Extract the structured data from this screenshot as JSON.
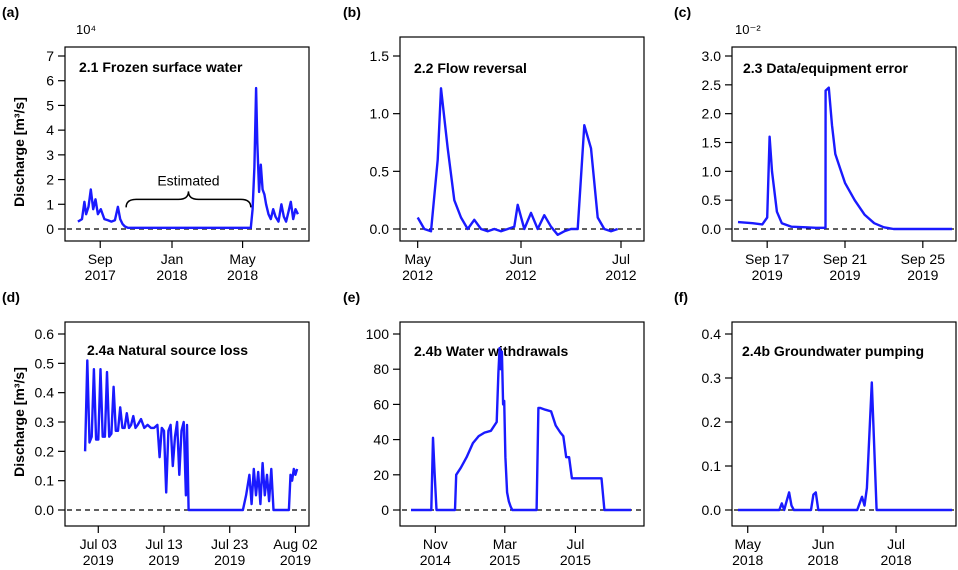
{
  "colors": {
    "series": "#1a1aff",
    "zero_line": "#000000",
    "axis": "#000000"
  },
  "ylabel": "Discharge [m³/s]",
  "chart_data": [
    {
      "type": "line",
      "panel_label": "(a)",
      "title": "2.1 Frozen surface water",
      "multiplier": "10⁴",
      "ylim": [
        0,
        7
      ],
      "yticks": [
        0,
        1,
        2,
        3,
        4,
        5,
        6,
        7
      ],
      "xlim": [
        "2017-07-15",
        "2018-08-10"
      ],
      "xticks": [
        {
          "x": "2017-09-01",
          "label": [
            "Sep",
            "2017"
          ]
        },
        {
          "x": "2018-01-01",
          "label": [
            "Jan",
            "2018"
          ]
        },
        {
          "x": "2018-05-01",
          "label": [
            "May",
            "2018"
          ]
        }
      ],
      "annotation": {
        "text": "Estimated",
        "x_start": "2017-10-15",
        "x_end": "2018-05-15",
        "y": 1.2
      },
      "series": [
        {
          "x": [
            "2017-07-25",
            "2017-08-01",
            "2017-08-05",
            "2017-08-08",
            "2017-08-12",
            "2017-08-16",
            "2017-08-20",
            "2017-08-24",
            "2017-08-28",
            "2017-09-02",
            "2017-09-08",
            "2017-09-14",
            "2017-09-20",
            "2017-09-26",
            "2017-10-01",
            "2017-10-05",
            "2017-10-09",
            "2017-10-13",
            "2017-10-18",
            "2017-11-01",
            "2018-01-01",
            "2018-03-01",
            "2018-05-15",
            "2018-05-18",
            "2018-05-21",
            "2018-05-24",
            "2018-05-26",
            "2018-05-29",
            "2018-06-01",
            "2018-06-04",
            "2018-06-07",
            "2018-06-10",
            "2018-06-14",
            "2018-06-18",
            "2018-06-22",
            "2018-06-26",
            "2018-07-01",
            "2018-07-06",
            "2018-07-10",
            "2018-07-14",
            "2018-07-18",
            "2018-07-22",
            "2018-07-26",
            "2018-07-30",
            "2018-08-03"
          ],
          "y": [
            0.3,
            0.4,
            1.1,
            0.6,
            0.9,
            1.6,
            0.8,
            1.2,
            0.6,
            0.8,
            0.4,
            0.35,
            0.3,
            0.35,
            0.9,
            0.4,
            0.2,
            0.1,
            0.05,
            0.05,
            0.05,
            0.05,
            0.05,
            0.8,
            2.5,
            5.7,
            3.5,
            1.5,
            2.6,
            1.6,
            1.4,
            1.0,
            0.6,
            0.4,
            0.8,
            0.5,
            0.3,
            1.0,
            0.5,
            0.3,
            0.7,
            1.1,
            0.4,
            0.8,
            0.6
          ]
        }
      ]
    },
    {
      "type": "line",
      "panel_label": "(b)",
      "title": "2.2 Flow reversal",
      "multiplier": "",
      "ylim": [
        -0.15,
        1.6
      ],
      "yticks": [
        0.0,
        0.5,
        1.0,
        1.5
      ],
      "ytick_labels": [
        "0.0",
        "0.5",
        "1.0",
        "1.5"
      ],
      "xlim": [
        "2012-04-29",
        "2012-07-04"
      ],
      "xticks": [
        {
          "x": "2012-05-01",
          "label": [
            "May",
            "2012"
          ]
        },
        {
          "x": "2012-06-01",
          "label": [
            "Jun",
            "2012"
          ]
        },
        {
          "x": "2012-07-01",
          "label": [
            "Jul",
            "2012"
          ]
        }
      ],
      "series": [
        {
          "x": [
            "2012-05-01",
            "2012-05-03",
            "2012-05-05",
            "2012-05-07",
            "2012-05-08",
            "2012-05-10",
            "2012-05-12",
            "2012-05-14",
            "2012-05-16",
            "2012-05-18",
            "2012-05-20",
            "2012-05-22",
            "2012-05-24",
            "2012-05-26",
            "2012-05-28",
            "2012-05-30",
            "2012-05-31",
            "2012-06-02",
            "2012-06-04",
            "2012-06-06",
            "2012-06-08",
            "2012-06-10",
            "2012-06-12",
            "2012-06-14",
            "2012-06-16",
            "2012-06-18",
            "2012-06-20",
            "2012-06-22",
            "2012-06-24",
            "2012-06-26",
            "2012-06-28",
            "2012-06-30"
          ],
          "y": [
            0.1,
            0.0,
            -0.02,
            0.6,
            1.22,
            0.7,
            0.25,
            0.1,
            0.0,
            0.08,
            0.0,
            -0.02,
            0.0,
            -0.02,
            0.0,
            0.02,
            0.21,
            0.0,
            0.14,
            0.0,
            0.12,
            0.02,
            -0.05,
            -0.02,
            0.0,
            0.0,
            0.9,
            0.7,
            0.1,
            0.0,
            -0.02,
            0.0
          ]
        }
      ]
    },
    {
      "type": "line",
      "panel_label": "(c)",
      "title": "2.3 Data/equipment error",
      "multiplier": "10⁻²",
      "ylim": [
        0,
        3.0
      ],
      "yticks": [
        0.0,
        0.5,
        1.0,
        1.5,
        2.0,
        2.5,
        3.0
      ],
      "ytick_labels": [
        "0.0",
        "0.5",
        "1.0",
        "1.5",
        "2.0",
        "2.5",
        "3.0"
      ],
      "xlim": [
        "2019-09-15 12:00",
        "2019-09-26 12:00"
      ],
      "xticks": [
        {
          "x": "2019-09-17",
          "label": [
            "Sep 17",
            "2019"
          ]
        },
        {
          "x": "2019-09-21",
          "label": [
            "Sep 21",
            "2019"
          ]
        },
        {
          "x": "2019-09-25",
          "label": [
            "Sep 25",
            "2019"
          ]
        }
      ],
      "series": [
        {
          "x": [
            "2019-09-15 12:00",
            "2019-09-16 06:00",
            "2019-09-16 18:00",
            "2019-09-17 00:00",
            "2019-09-17 03:00",
            "2019-09-17 06:00",
            "2019-09-17 12:00",
            "2019-09-17 18:00",
            "2019-09-18 06:00",
            "2019-09-19 00:00",
            "2019-09-19 12:00",
            "2019-09-20 00:00",
            "2019-09-20 00:01",
            "2019-09-20 04:00",
            "2019-09-20 08:00",
            "2019-09-20 12:00",
            "2019-09-20 18:00",
            "2019-09-21 00:00",
            "2019-09-21 12:00",
            "2019-09-22 00:00",
            "2019-09-22 12:00",
            "2019-09-23 00:00",
            "2019-09-23 12:00",
            "2019-09-24 00:00",
            "2019-09-26 12:00"
          ],
          "y": [
            0.12,
            0.1,
            0.08,
            0.2,
            1.6,
            1.0,
            0.3,
            0.1,
            0.04,
            0.03,
            0.02,
            0.02,
            2.4,
            2.45,
            1.8,
            1.3,
            1.05,
            0.8,
            0.5,
            0.25,
            0.1,
            0.03,
            0.0,
            0.0,
            0.0
          ]
        }
      ]
    },
    {
      "type": "line",
      "panel_label": "(d)",
      "title": "2.4a Natural source loss",
      "multiplier": "",
      "ylim": [
        0,
        0.6
      ],
      "yticks": [
        0.0,
        0.1,
        0.2,
        0.3,
        0.4,
        0.5,
        0.6
      ],
      "ytick_labels": [
        "0.0",
        "0.1",
        "0.2",
        "0.3",
        "0.4",
        "0.5",
        "0.6"
      ],
      "xlim": [
        "2019-06-29",
        "2019-08-03"
      ],
      "xticks": [
        {
          "x": "2019-07-03",
          "label": [
            "Jul 03",
            "2019"
          ]
        },
        {
          "x": "2019-07-13",
          "label": [
            "Jul 13",
            "2019"
          ]
        },
        {
          "x": "2019-07-23",
          "label": [
            "Jul 23",
            "2019"
          ]
        },
        {
          "x": "2019-08-02",
          "label": [
            "Aug 02",
            "2019"
          ]
        }
      ],
      "series": [
        {
          "x": [
            "2019-07-01 00:00",
            "2019-07-01 08:00",
            "2019-07-01 16:00",
            "2019-07-02 00:00",
            "2019-07-02 08:00",
            "2019-07-02 16:00",
            "2019-07-03 00:00",
            "2019-07-03 08:00",
            "2019-07-03 16:00",
            "2019-07-04 00:00",
            "2019-07-04 08:00",
            "2019-07-04 16:00",
            "2019-07-05 00:00",
            "2019-07-05 08:00",
            "2019-07-05 16:00",
            "2019-07-06 00:00",
            "2019-07-06 08:00",
            "2019-07-06 16:00",
            "2019-07-07 00:00",
            "2019-07-07 08:00",
            "2019-07-07 16:00",
            "2019-07-08 00:00",
            "2019-07-08 08:00",
            "2019-07-08 16:00",
            "2019-07-09 00:00",
            "2019-07-09 12:00",
            "2019-07-10 00:00",
            "2019-07-10 12:00",
            "2019-07-11 00:00",
            "2019-07-11 12:00",
            "2019-07-12 00:00",
            "2019-07-12 08:00",
            "2019-07-12 16:00",
            "2019-07-13 00:00",
            "2019-07-13 08:00",
            "2019-07-13 16:00",
            "2019-07-14 00:00",
            "2019-07-14 08:00",
            "2019-07-14 16:00",
            "2019-07-15 00:00",
            "2019-07-15 08:00",
            "2019-07-15 16:00",
            "2019-07-16 00:00",
            "2019-07-16 08:00",
            "2019-07-16 12:00",
            "2019-07-16 18:00",
            "2019-07-17 00:00",
            "2019-07-17 12:00",
            "2019-07-18 00:00",
            "2019-07-25 00:00",
            "2019-07-25 12:00",
            "2019-07-26 00:00",
            "2019-07-26 08:00",
            "2019-07-26 16:00",
            "2019-07-27 00:00",
            "2019-07-27 08:00",
            "2019-07-27 16:00",
            "2019-07-28 00:00",
            "2019-07-28 08:00",
            "2019-07-28 16:00",
            "2019-07-29 00:00",
            "2019-07-29 08:00",
            "2019-07-29 16:00",
            "2019-07-30 00:00",
            "2019-07-30 12:00",
            "2019-07-31 00:00",
            "2019-07-31 12:00",
            "2019-08-01 00:00",
            "2019-08-01 06:00",
            "2019-08-01 12:00",
            "2019-08-01 18:00",
            "2019-08-02 00:00",
            "2019-08-02 06:00"
          ],
          "y": [
            0.2,
            0.51,
            0.23,
            0.25,
            0.48,
            0.24,
            0.24,
            0.48,
            0.25,
            0.25,
            0.47,
            0.25,
            0.26,
            0.42,
            0.27,
            0.27,
            0.35,
            0.28,
            0.28,
            0.33,
            0.28,
            0.29,
            0.32,
            0.28,
            0.29,
            0.31,
            0.28,
            0.29,
            0.28,
            0.28,
            0.29,
            0.18,
            0.28,
            0.27,
            0.06,
            0.27,
            0.29,
            0.15,
            0.25,
            0.3,
            0.12,
            0.27,
            0.3,
            0.05,
            0.29,
            0.0,
            0.0,
            0.0,
            0.0,
            0.0,
            0.05,
            0.12,
            0.02,
            0.14,
            0.05,
            0.13,
            0.02,
            0.16,
            0.05,
            0.12,
            0.03,
            0.14,
            0.0,
            0.0,
            0.0,
            0.0,
            0.0,
            0.0,
            0.12,
            0.1,
            0.14,
            0.12,
            0.14
          ]
        }
      ]
    },
    {
      "type": "line",
      "panel_label": "(e)",
      "title": "2.4b Water withdrawals",
      "multiplier": "",
      "ylim": [
        0,
        115
      ],
      "yticks": [
        0,
        20,
        40,
        60,
        80,
        100
      ],
      "xlim": [
        "2014-09-20",
        "2015-10-05"
      ],
      "xticks": [
        {
          "x": "2014-11-01",
          "label": [
            "Nov",
            "2014"
          ]
        },
        {
          "x": "2015-03-01",
          "label": [
            "Mar",
            "2015"
          ]
        },
        {
          "x": "2015-07-01",
          "label": [
            "Jul",
            "2015"
          ]
        }
      ],
      "series": [
        {
          "x": [
            "2014-09-20",
            "2014-10-25",
            "2014-10-28",
            "2014-10-31",
            "2014-11-03",
            "2014-12-05",
            "2014-12-07",
            "2014-12-15",
            "2014-12-25",
            "2015-01-05",
            "2015-01-15",
            "2015-01-25",
            "2015-02-05",
            "2015-02-15",
            "2015-02-18",
            "2015-02-20",
            "2015-02-22",
            "2015-02-24",
            "2015-02-26",
            "2015-02-28",
            "2015-03-02",
            "2015-03-05",
            "2015-03-08",
            "2015-03-11",
            "2015-03-14",
            "2015-03-20",
            "2015-04-25",
            "2015-04-28",
            "2015-05-01",
            "2015-05-10",
            "2015-05-20",
            "2015-05-28",
            "2015-06-05",
            "2015-06-10",
            "2015-06-15",
            "2015-06-20",
            "2015-06-25",
            "2015-07-01",
            "2015-07-08",
            "2015-07-15",
            "2015-08-15",
            "2015-08-20",
            "2015-10-05"
          ],
          "y": [
            0,
            0,
            41,
            20,
            0,
            0,
            20,
            24,
            30,
            38,
            42,
            44,
            45,
            50,
            78,
            92,
            80,
            90,
            60,
            62,
            30,
            10,
            5,
            2,
            0,
            0,
            0,
            58,
            58,
            57,
            56,
            48,
            44,
            42,
            30,
            30,
            18,
            18,
            18,
            18,
            18,
            0,
            0
          ]
        }
      ]
    },
    {
      "type": "line",
      "panel_label": "(f)",
      "title": "2.4b Groundwater pumping",
      "multiplier": "",
      "ylim": [
        0,
        0.42
      ],
      "yticks": [
        0.0,
        0.1,
        0.2,
        0.3,
        0.4
      ],
      "ytick_labels": [
        "0.0",
        "0.1",
        "0.2",
        "0.3",
        "0.4"
      ],
      "xlim": [
        "2018-04-27",
        "2018-07-24"
      ],
      "xticks": [
        {
          "x": "2018-05-01",
          "label": [
            "May",
            "2018"
          ]
        },
        {
          "x": "2018-06-01",
          "label": [
            "Jun",
            "2018"
          ]
        },
        {
          "x": "2018-07-01",
          "label": [
            "Jul",
            "2018"
          ]
        }
      ],
      "series": [
        {
          "x": [
            "2018-04-27",
            "2018-05-14",
            "2018-05-15",
            "2018-05-16",
            "2018-05-17",
            "2018-05-18",
            "2018-05-19",
            "2018-05-20",
            "2018-05-21",
            "2018-05-22",
            "2018-05-27",
            "2018-05-28",
            "2018-05-29",
            "2018-05-30",
            "2018-06-15",
            "2018-06-17",
            "2018-06-18",
            "2018-06-19",
            "2018-06-21",
            "2018-06-23",
            "2018-06-25",
            "2018-07-24"
          ],
          "y": [
            0,
            0,
            0.015,
            0,
            0.02,
            0.04,
            0.01,
            0,
            0,
            0,
            0,
            0.035,
            0.04,
            0,
            0,
            0.03,
            0.01,
            0.05,
            0.29,
            0,
            0,
            0
          ]
        }
      ]
    }
  ]
}
